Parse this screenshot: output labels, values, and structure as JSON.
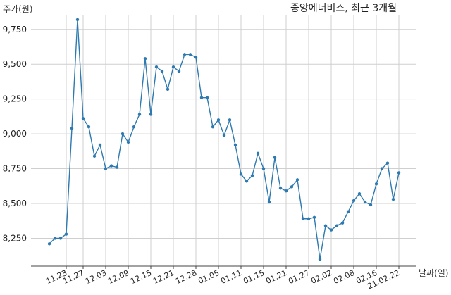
{
  "chart_data": {
    "type": "line",
    "title": "중앙에너비스, 최근 3개월",
    "ylabel": "주가(원)",
    "xlabel": "날짜(일)",
    "ylim": [
      8050,
      9850
    ],
    "yticks": [
      8250,
      8500,
      8750,
      9000,
      9250,
      9500,
      9750
    ],
    "ytick_labels": [
      "8,250",
      "8,500",
      "8,750",
      "9,000",
      "9,250",
      "9,500",
      "9,750"
    ],
    "grid": true,
    "color": "#2e7ab0",
    "xtick_labels": [
      {
        "label": "11.23",
        "index": 3
      },
      {
        "label": "11.27",
        "index": 6
      },
      {
        "label": "12.03",
        "index": 10
      },
      {
        "label": "12.09",
        "index": 14
      },
      {
        "label": "12.15",
        "index": 18
      },
      {
        "label": "12.21",
        "index": 22
      },
      {
        "label": "12.28",
        "index": 26
      },
      {
        "label": "01.05",
        "index": 30
      },
      {
        "label": "01.11",
        "index": 34
      },
      {
        "label": "01.15",
        "index": 38
      },
      {
        "label": "01.21",
        "index": 42
      },
      {
        "label": "01.27",
        "index": 46
      },
      {
        "label": "02.02",
        "index": 50
      },
      {
        "label": "02.08",
        "index": 54
      },
      {
        "label": "02.16",
        "index": 58
      },
      {
        "label": "21.02.22",
        "index": 62
      }
    ],
    "series": [
      {
        "values": [
          8210,
          8250,
          8250,
          8280,
          9040,
          9820,
          9110,
          9050,
          8840,
          8920,
          8750,
          8770,
          8760,
          9000,
          8940,
          9050,
          9140,
          9540,
          9140,
          9480,
          9450,
          9320,
          9480,
          9450,
          9570,
          9570,
          9550,
          9260,
          9260,
          9050,
          9100,
          8990,
          9100,
          8920,
          8710,
          8660,
          8700,
          8860,
          8750,
          8510,
          8830,
          8610,
          8590,
          8620,
          8670,
          8390,
          8390,
          8400,
          8100,
          8340,
          8310,
          8340,
          8360,
          8440,
          8520,
          8570,
          8510,
          8490,
          8640,
          8750,
          8790,
          8530,
          8720
        ]
      }
    ]
  }
}
